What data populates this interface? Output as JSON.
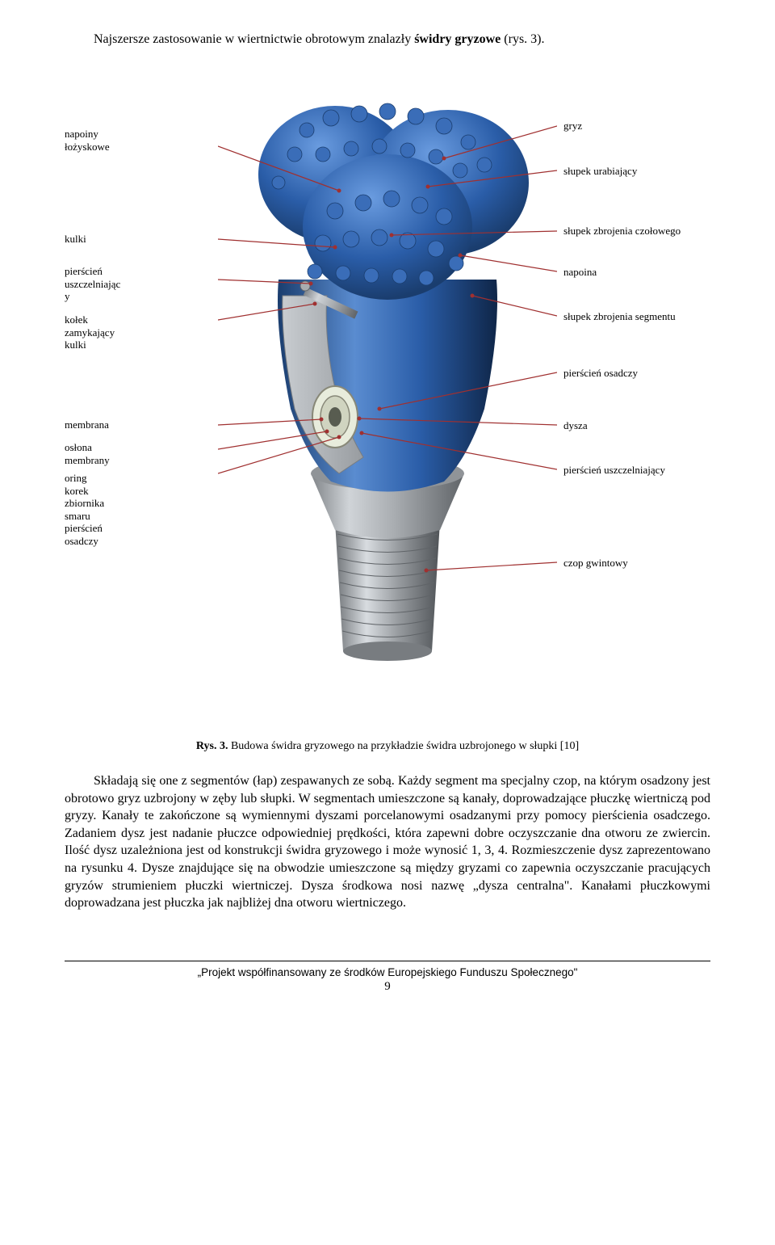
{
  "intro": "Najszersze zastosowanie w wiertnictwie obrotowym znalazły świdry gryzowe (rys. 3).",
  "labels": {
    "left": {
      "napoiny_lozyskowe": "napoiny\nłożyskowe",
      "kulki": "kulki",
      "pierscien_uszcz": "pierścień\nuszczelniając\ny",
      "kolek": "kołek\nzamykający\nkulki",
      "membrana": "membrana",
      "oslona": "osłona\nmembrany",
      "oring": "oring\nkorek\nzbiornika\nsmaru\npierścień\nosadczy"
    },
    "right": {
      "gryz": "gryz",
      "slupek_urabiajacy": "słupek urabiający",
      "slupek_czolowy": "słupek zbrojenia czołowego",
      "napoina": "napoina",
      "slupek_segmentu": "słupek zbrojenia segmentu",
      "pierscien_osadczy": "pierścień osadczy",
      "dysza": "dysza",
      "pierscien_uszcz_r": "pierścień uszczelniający",
      "czop": "czop gwintowy"
    }
  },
  "caption": "Rys. 3. Budowa świdra gryzowego na przykładzie świdra uzbrojonego w słupki [10]",
  "body": "Składają się one z segmentów (łap) zespawanych ze sobą. Każdy segment ma specjalny czop, na którym osadzony jest obrotowo gryz uzbrojony w zęby lub słupki. W segmentach umieszczone są kanały, doprowadzające płuczkę wiertniczą pod gryzy. Kanały te zakończone są wymiennymi dyszami porcelanowymi osadzanymi przy pomocy pierścienia osadczego. Zadaniem dysz jest nadanie płuczce odpowiedniej prędkości, która zapewni dobre oczyszczanie dna otworu ze zwiercin. Ilość dysz uzależniona jest od konstrukcji świdra gryzowego i może wynosić 1, 3, 4. Rozmieszczenie dysz zaprezentowano na  rysunku 4. Dysze znajdujące się na obwodzie umieszczone są między gryzami co zapewnia oczyszczanie pracujących gryzów strumieniem płuczki wiertniczej. Dysza środkowa nosi nazwę „dysza centralna\". Kanałami płuczkowymi doprowadzana jest płuczka jak najbliżej dna otworu wiertniczego.",
  "footer": "„Projekt współfinansowany ze środków Europejskiego Funduszu Społecznego\"",
  "page_num": "9",
  "colors": {
    "drill_blue": "#2a5da8",
    "drill_blue_light": "#5a8cd0",
    "drill_blue_dark": "#1a3d6e",
    "steel_light": "#b8bcc0",
    "steel_mid": "#888c90",
    "steel_dark": "#585c60",
    "cutaway_light": "#d8dce0",
    "leader_line": "#a03030"
  }
}
